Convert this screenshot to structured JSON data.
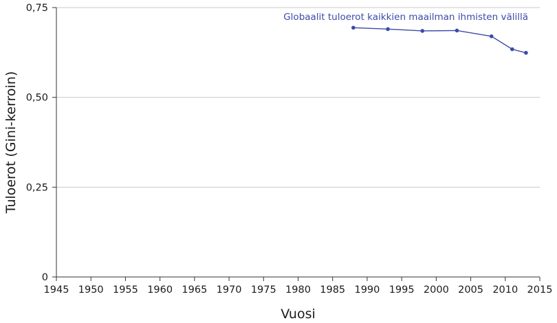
{
  "chart_data": {
    "type": "line",
    "xlabel": "Vuosi",
    "ylabel": "Tuloerot (Gini-kerroin)",
    "xlim": [
      1945,
      2015
    ],
    "ylim": [
      0,
      0.75
    ],
    "x_ticks": [
      1945,
      1950,
      1955,
      1960,
      1965,
      1970,
      1975,
      1980,
      1985,
      1990,
      1995,
      2000,
      2005,
      2010,
      2015
    ],
    "y_ticks": [
      {
        "value": 0,
        "label": "0"
      },
      {
        "value": 0.25,
        "label": "0,25"
      },
      {
        "value": 0.5,
        "label": "0,50"
      },
      {
        "value": 0.75,
        "label": "0,75"
      }
    ],
    "grid": "horizontal",
    "series": [
      {
        "name": "Globaalit tuloerot kaikkien maailman ihmisten välillä",
        "color": "#3a4ba8",
        "x": [
          1988,
          1993,
          1998,
          2003,
          2008,
          2011,
          2013
        ],
        "values": [
          0.694,
          0.69,
          0.685,
          0.686,
          0.67,
          0.634,
          0.624
        ]
      }
    ]
  }
}
